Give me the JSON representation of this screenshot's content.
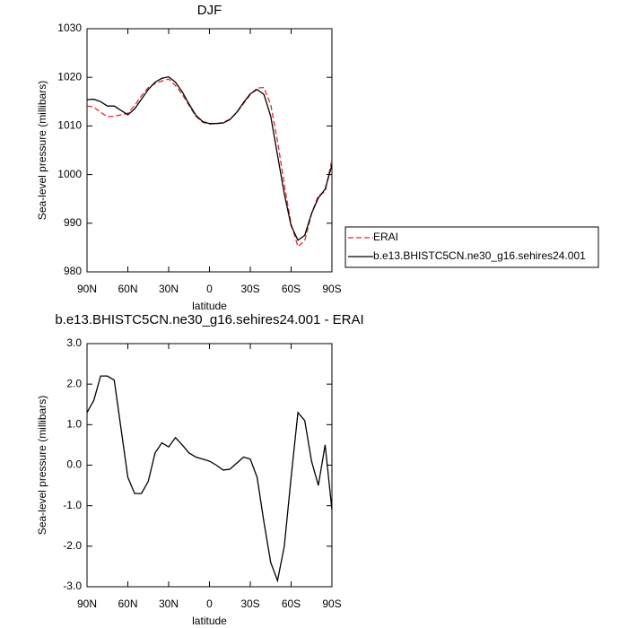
{
  "chart_data": [
    {
      "type": "line",
      "title": "DJF",
      "xlabel": "latitude",
      "ylabel": "Sea-level pressure (millibars)",
      "x": [
        90,
        85,
        80,
        75,
        70,
        65,
        60,
        55,
        50,
        45,
        40,
        35,
        30,
        25,
        20,
        15,
        10,
        5,
        0,
        -5,
        -10,
        -15,
        -20,
        -25,
        -30,
        -35,
        -40,
        -45,
        -50,
        -55,
        -60,
        -65,
        -70,
        -75,
        -80,
        -85,
        -90
      ],
      "xlim": [
        90,
        -90
      ],
      "xticks": [
        {
          "value": 90,
          "label": "90N"
        },
        {
          "value": 60,
          "label": "60N"
        },
        {
          "value": 30,
          "label": "30N"
        },
        0,
        {
          "value": -30,
          "label": "30S"
        },
        {
          "value": -60,
          "label": "60S"
        },
        {
          "value": -90,
          "label": "90S"
        }
      ],
      "ylim": [
        980,
        1030
      ],
      "yticks": [
        980,
        990,
        1000,
        1010,
        1020,
        1030
      ],
      "legend": "right",
      "series": [
        {
          "name": "ERAI",
          "color": "#e8262b",
          "line_style": "dashed",
          "values": [
            1014.1,
            1013.9,
            1012.8,
            1011.9,
            1012.0,
            1012.3,
            1012.6,
            1014.2,
            1016.2,
            1017.9,
            1018.7,
            1019.25,
            1019.65,
            1018.3,
            1016.5,
            1014.2,
            1012.0,
            1010.75,
            1010.4,
            1010.5,
            1010.7,
            1011.4,
            1012.75,
            1014.6,
            1016.45,
            1017.8,
            1017.9,
            1014.4,
            1006.85,
            998.0,
            989.8,
            985.2,
            986.4,
            991.9,
            995.7,
            996.5,
            1003.1
          ]
        },
        {
          "name": "b.e13.BHISTC5CN.ne30_g16.sehires24.001",
          "color": "#000000",
          "line_style": "solid",
          "values": [
            1015.4,
            1015.5,
            1015.0,
            1014.1,
            1014.1,
            1013.2,
            1012.3,
            1013.5,
            1015.5,
            1017.5,
            1019.0,
            1019.8,
            1020.1,
            1019.0,
            1017.0,
            1014.5,
            1012.2,
            1010.9,
            1010.5,
            1010.5,
            1010.6,
            1011.3,
            1012.8,
            1014.8,
            1016.6,
            1017.5,
            1016.5,
            1012.0,
            1004.0,
            996.0,
            989.5,
            986.5,
            987.5,
            992.0,
            995.2,
            997.0,
            1002.0
          ]
        }
      ]
    },
    {
      "type": "line",
      "title": "b.e13.BHISTC5CN.ne30_g16.sehires24.001 - ERAI",
      "xlabel": "latitude",
      "ylabel": "Sea-level pressure (millibars)",
      "x": [
        90,
        85,
        80,
        75,
        70,
        65,
        60,
        55,
        50,
        45,
        40,
        35,
        30,
        25,
        20,
        15,
        10,
        5,
        0,
        -5,
        -10,
        -15,
        -20,
        -25,
        -30,
        -35,
        -40,
        -45,
        -50,
        -55,
        -60,
        -65,
        -70,
        -75,
        -80,
        -85,
        -90
      ],
      "xlim": [
        90,
        -90
      ],
      "xticks": [
        {
          "value": 90,
          "label": "90N"
        },
        {
          "value": 60,
          "label": "60N"
        },
        {
          "value": 30,
          "label": "30N"
        },
        0,
        {
          "value": -30,
          "label": "30S"
        },
        {
          "value": -60,
          "label": "60S"
        },
        {
          "value": -90,
          "label": "90S"
        }
      ],
      "ylim": [
        -3,
        3
      ],
      "yticks": [
        {
          "value": -3,
          "label": "-3.0"
        },
        {
          "value": -2,
          "label": "-2.0"
        },
        {
          "value": -1,
          "label": "-1.0"
        },
        {
          "value": 0,
          "label": "0.0"
        },
        {
          "value": 1,
          "label": "1.0"
        },
        {
          "value": 2,
          "label": "2.0"
        },
        {
          "value": 3,
          "label": "3.0"
        }
      ],
      "series": [
        {
          "color": "#000000",
          "line_style": "solid",
          "values": [
            1.3,
            1.6,
            2.2,
            2.2,
            2.1,
            0.9,
            -0.3,
            -0.7,
            -0.7,
            -0.4,
            0.3,
            0.55,
            0.45,
            0.68,
            0.5,
            0.3,
            0.2,
            0.15,
            0.1,
            0.0,
            -0.12,
            -0.1,
            0.05,
            0.2,
            0.15,
            -0.3,
            -1.4,
            -2.4,
            -2.85,
            -2.0,
            -0.3,
            1.3,
            1.1,
            0.1,
            -0.5,
            0.5,
            -1.1
          ]
        }
      ]
    }
  ]
}
